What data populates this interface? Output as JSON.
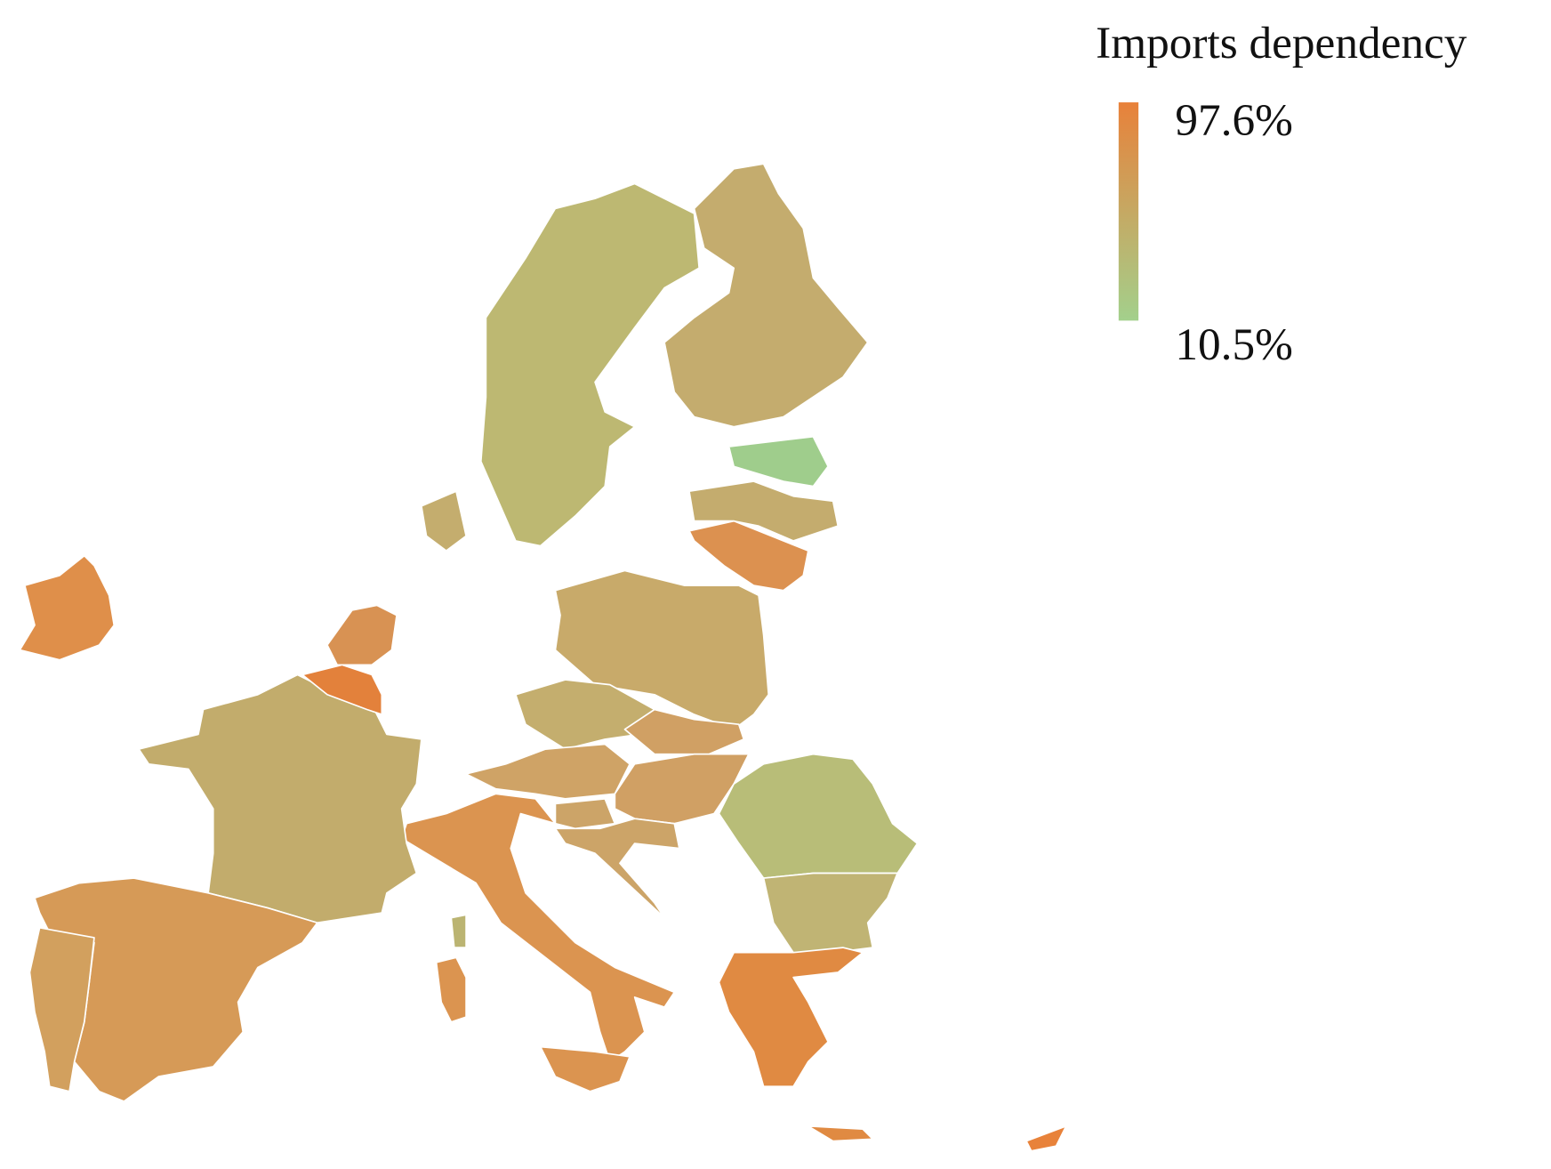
{
  "legend": {
    "title": "Imports dependency",
    "max": {
      "value": 97.6,
      "label": "97.6%"
    },
    "min": {
      "value": 10.5,
      "label": "10.5%"
    },
    "colors": [
      "#e8813a",
      "#a3d08c"
    ]
  },
  "region_colors": [
    "#bdb872",
    "#c4ac6e",
    "#9fcd8c",
    "#c4ac6e",
    "#dc9150",
    "#c8aa6a",
    "#c4ae6e",
    "#d0a064",
    "#cfa366",
    "#d0a064",
    "#cca468",
    "#cca468",
    "#b8bd78",
    "#c0b474",
    "#e08a42",
    "#db9450",
    "#db9450",
    "#db9450",
    "#bbb472",
    "#c2ac6c",
    "#d69a57",
    "#d2a05e",
    "#df8f4a",
    "#d89253",
    "#e3813b",
    "#c4ad6e",
    "#e8823a",
    "#e08a42"
  ]
}
